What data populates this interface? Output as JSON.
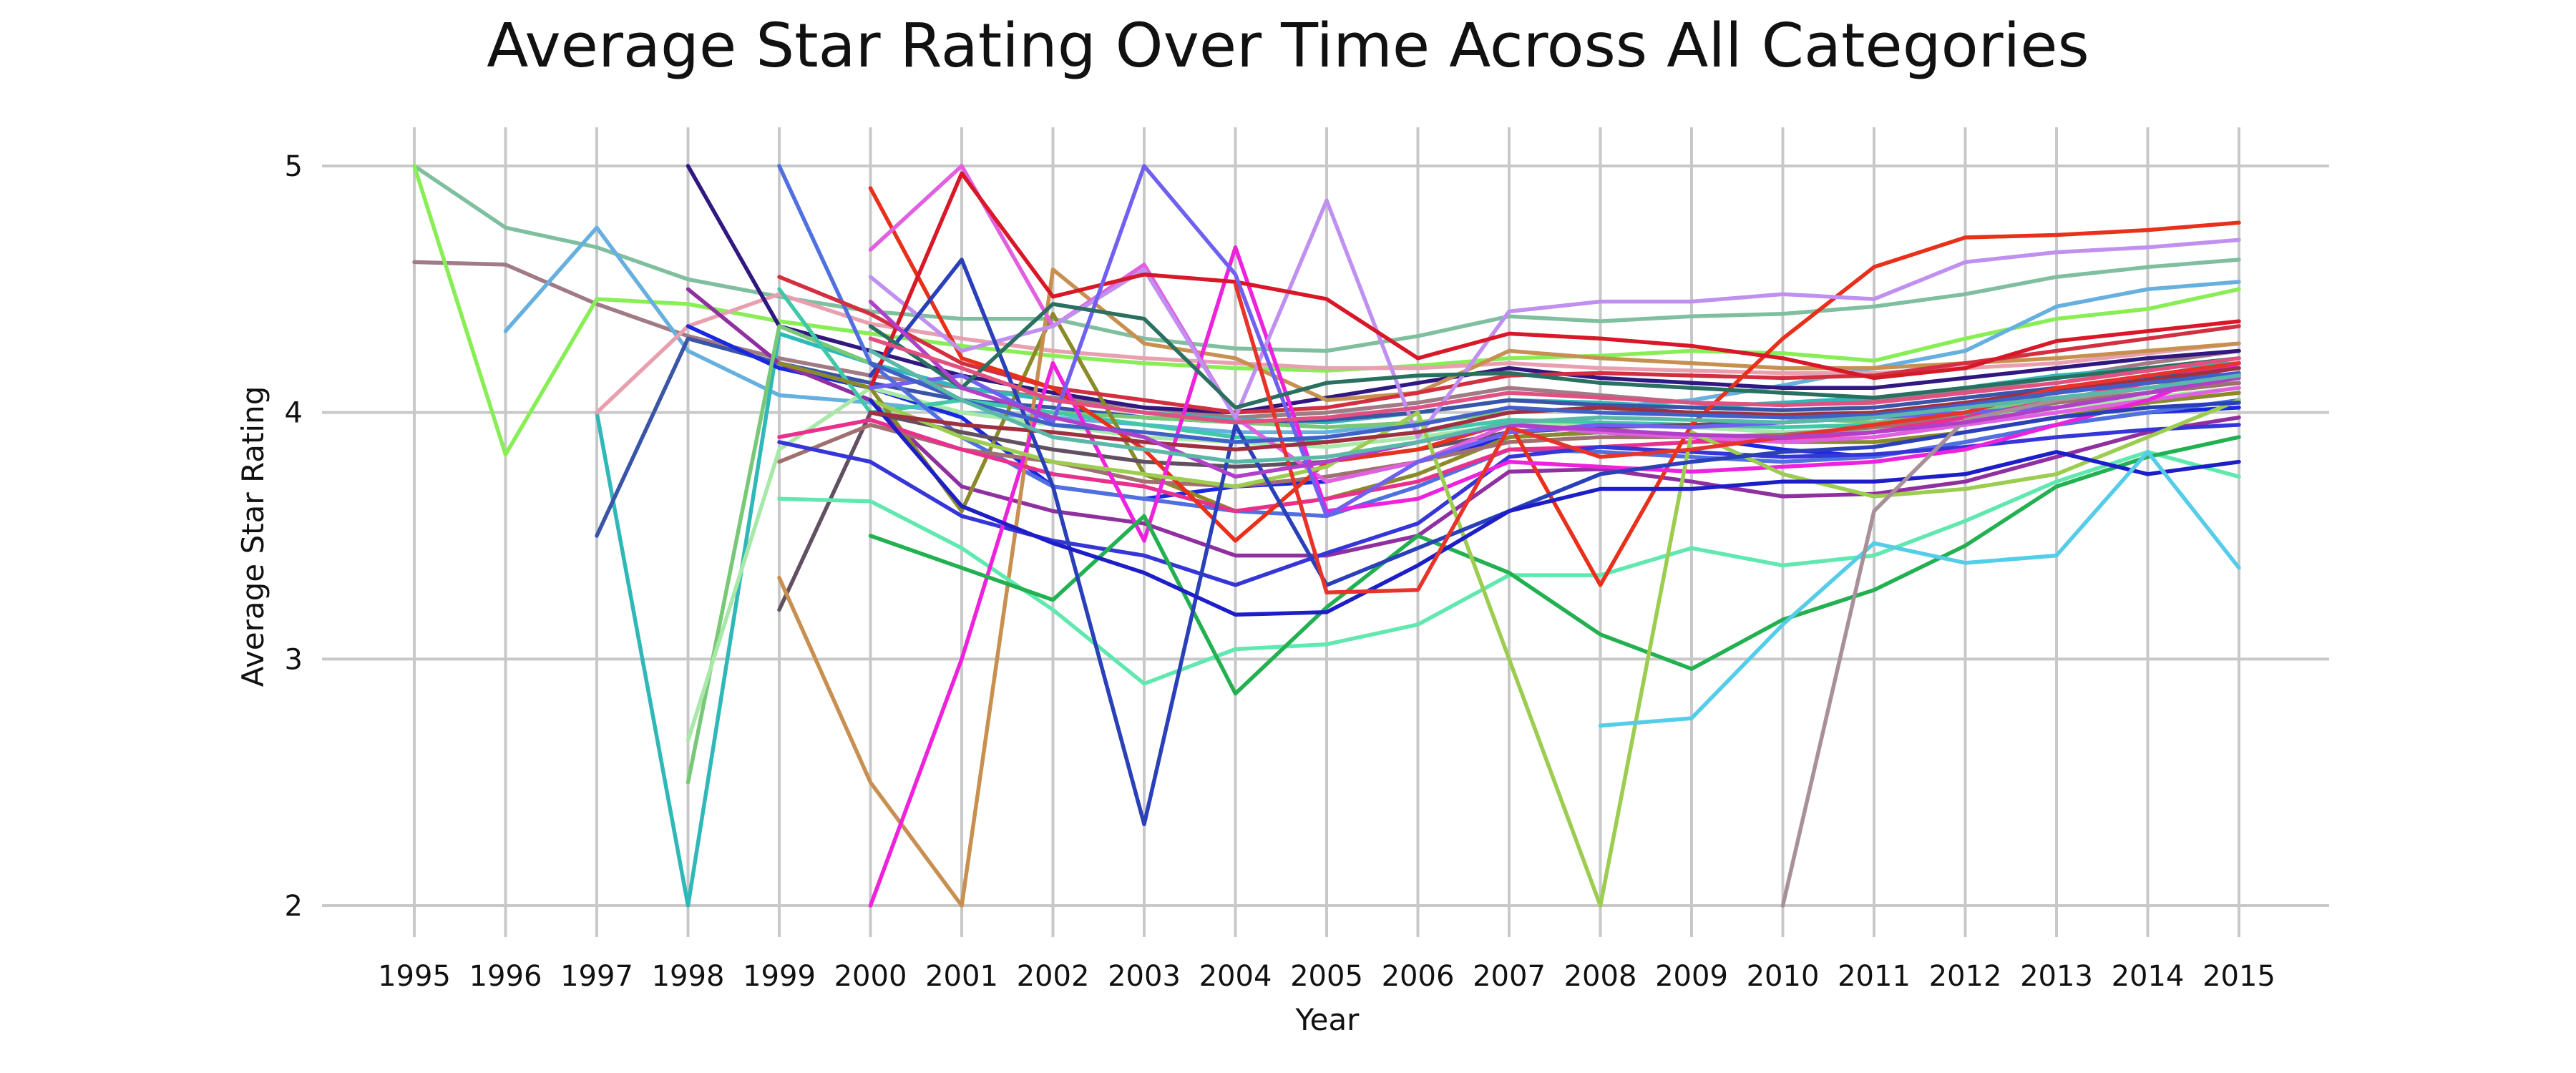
{
  "chart_data": {
    "type": "line",
    "title": "Average Star Rating Over Time Across All Categories",
    "xlabel": "Year",
    "ylabel": "Average Star Rating",
    "x": [
      1995,
      1996,
      1997,
      1998,
      1999,
      2000,
      2001,
      2002,
      2003,
      2004,
      2005,
      2006,
      2007,
      2008,
      2009,
      2010,
      2011,
      2012,
      2013,
      2014,
      2015
    ],
    "xlim": [
      1995,
      2015
    ],
    "ylim": [
      1.85,
      5.15
    ],
    "yticks": [
      2,
      3,
      4,
      5
    ],
    "grid": true,
    "legend": "none",
    "series": [
      {
        "color": "#7fbf9f",
        "values": [
          5.0,
          4.75,
          4.67,
          4.54,
          4.47,
          4.41,
          4.38,
          4.38,
          4.3,
          4.26,
          4.25,
          4.31,
          4.39,
          4.37,
          4.39,
          4.4,
          4.43,
          4.48,
          4.55,
          4.59,
          4.62
        ]
      },
      {
        "color": "#a07a85",
        "values": [
          4.61,
          4.6,
          4.44,
          4.31,
          4.22,
          4.15,
          4.1,
          4.06,
          4.02,
          3.98,
          4.0,
          4.04,
          4.1,
          4.07,
          4.04,
          4.03,
          4.05,
          4.09,
          4.14,
          4.2,
          4.25
        ]
      },
      {
        "color": "#88ee55",
        "values": [
          5.0,
          3.83,
          4.46,
          4.44,
          4.37,
          4.32,
          4.27,
          4.23,
          4.2,
          4.18,
          4.17,
          4.19,
          4.22,
          4.23,
          4.25,
          4.24,
          4.21,
          4.3,
          4.38,
          4.42,
          4.5
        ]
      },
      {
        "color": "#66b0e0",
        "values": [
          null,
          4.33,
          4.75,
          4.25,
          4.07,
          4.04,
          4.0,
          3.98,
          3.95,
          3.92,
          3.92,
          3.96,
          4.0,
          4.02,
          4.05,
          4.11,
          4.18,
          4.25,
          4.43,
          4.5,
          4.53
        ]
      },
      {
        "color": "#30b8b8",
        "values": [
          null,
          null,
          4.0,
          2.0,
          4.32,
          4.2,
          4.1,
          4.05,
          4.0,
          3.97,
          3.96,
          4.0,
          4.05,
          4.04,
          4.02,
          4.04,
          4.06,
          4.1,
          4.15,
          4.18,
          4.2
        ]
      },
      {
        "color": "#e8a0b0",
        "values": [
          null,
          null,
          4.0,
          4.35,
          4.48,
          4.36,
          4.3,
          4.25,
          4.22,
          4.2,
          4.18,
          4.18,
          4.2,
          4.18,
          4.17,
          4.16,
          4.16,
          4.18,
          4.2,
          4.24,
          4.28
        ]
      },
      {
        "color": "#3a55a8",
        "values": [
          null,
          null,
          3.5,
          4.3,
          4.2,
          4.12,
          4.05,
          4.02,
          3.98,
          3.96,
          3.97,
          4.0,
          4.05,
          4.03,
          4.02,
          4.01,
          4.02,
          4.06,
          4.1,
          4.14,
          4.18
        ]
      },
      {
        "color": "#301880",
        "values": [
          null,
          null,
          null,
          5.0,
          4.35,
          4.25,
          4.15,
          4.08,
          4.02,
          4.0,
          4.06,
          4.12,
          4.18,
          4.14,
          4.12,
          4.1,
          4.1,
          4.14,
          4.18,
          4.22,
          4.25
        ]
      },
      {
        "color": "#1a28e0",
        "values": [
          null,
          null,
          null,
          4.35,
          4.18,
          4.1,
          3.98,
          3.7,
          3.65,
          3.7,
          3.72,
          3.8,
          3.9,
          3.92,
          3.9,
          3.85,
          3.82,
          3.88,
          3.95,
          4.0,
          4.02
        ]
      },
      {
        "color": "#9030a0",
        "values": [
          null,
          null,
          null,
          4.5,
          4.2,
          4.05,
          3.7,
          3.6,
          3.55,
          3.42,
          3.42,
          3.5,
          3.76,
          3.77,
          3.72,
          3.66,
          3.67,
          3.72,
          3.82,
          3.92,
          3.98
        ]
      },
      {
        "color": "#78c878",
        "values": [
          null,
          null,
          null,
          2.5,
          4.35,
          4.2,
          4.05,
          4.0,
          3.98,
          3.96,
          3.94,
          3.96,
          4.0,
          4.02,
          4.0,
          3.98,
          3.96,
          4.0,
          4.05,
          4.1,
          4.12
        ]
      },
      {
        "color": "#a8e8a8",
        "values": [
          null,
          null,
          null,
          2.67,
          3.85,
          4.1,
          4.0,
          3.95,
          3.9,
          3.88,
          3.86,
          3.9,
          3.95,
          3.96,
          3.94,
          3.92,
          3.93,
          3.97,
          4.02,
          4.06,
          4.1
        ]
      },
      {
        "color": "#40c8a8",
        "values": [
          null,
          null,
          null,
          null,
          4.5,
          4.0,
          4.05,
          4.0,
          3.95,
          3.9,
          3.88,
          3.92,
          3.97,
          3.96,
          3.95,
          3.94,
          3.95,
          3.99,
          4.04,
          4.08,
          4.12
        ]
      },
      {
        "color": "#8a8a2a",
        "values": [
          null,
          null,
          null,
          null,
          4.2,
          4.1,
          3.6,
          4.4,
          3.75,
          3.6,
          3.65,
          3.75,
          3.9,
          3.92,
          3.9,
          3.88,
          3.88,
          3.92,
          3.98,
          4.04,
          4.08
        ]
      },
      {
        "color": "#5070e0",
        "values": [
          null,
          null,
          null,
          null,
          5.0,
          4.2,
          3.9,
          3.7,
          3.65,
          3.6,
          3.58,
          3.7,
          3.85,
          3.84,
          3.82,
          3.8,
          3.82,
          3.88,
          3.95,
          4.0,
          4.05
        ]
      },
      {
        "color": "#605060",
        "values": [
          null,
          null,
          null,
          null,
          3.2,
          4.0,
          3.92,
          3.85,
          3.8,
          3.78,
          3.8,
          3.85,
          3.92,
          3.94,
          3.95,
          3.96,
          3.98,
          4.02,
          4.08,
          4.12,
          4.15
        ]
      },
      {
        "color": "#a07070",
        "values": [
          null,
          null,
          null,
          null,
          3.8,
          3.95,
          3.85,
          3.8,
          3.72,
          3.7,
          3.74,
          3.8,
          3.88,
          3.9,
          3.9,
          3.91,
          3.94,
          3.98,
          4.04,
          4.08,
          4.12
        ]
      },
      {
        "color": "#c89050",
        "values": [
          null,
          null,
          null,
          null,
          3.33,
          2.5,
          2.0,
          4.58,
          4.28,
          4.22,
          4.05,
          4.08,
          4.25,
          4.22,
          4.2,
          4.18,
          4.18,
          4.2,
          4.22,
          4.25,
          4.28
        ]
      },
      {
        "color": "#d23040",
        "values": [
          null,
          null,
          null,
          null,
          4.55,
          4.4,
          4.2,
          4.1,
          4.05,
          4.0,
          4.02,
          4.08,
          4.15,
          4.16,
          4.15,
          4.14,
          4.15,
          4.2,
          4.25,
          4.3,
          4.35
        ]
      },
      {
        "color": "#e8308c",
        "values": [
          null,
          null,
          null,
          null,
          3.9,
          3.97,
          3.85,
          3.75,
          3.7,
          3.6,
          3.65,
          3.72,
          3.85,
          3.86,
          3.88,
          3.89,
          3.92,
          3.98,
          4.05,
          4.12,
          4.2
        ]
      },
      {
        "color": "#60e8b0",
        "values": [
          null,
          null,
          null,
          null,
          3.65,
          3.64,
          3.45,
          3.2,
          2.9,
          3.04,
          3.06,
          3.14,
          3.34,
          3.34,
          3.45,
          3.38,
          3.42,
          3.56,
          3.72,
          3.84,
          3.74
        ]
      },
      {
        "color": "#3636d8",
        "values": [
          null,
          null,
          null,
          null,
          3.88,
          3.8,
          3.58,
          3.48,
          3.42,
          3.3,
          3.43,
          3.55,
          3.82,
          3.86,
          3.84,
          3.82,
          3.83,
          3.86,
          3.9,
          3.93,
          3.95
        ]
      },
      {
        "color": "#e8301a",
        "values": [
          null,
          null,
          null,
          null,
          null,
          4.91,
          4.22,
          4.1,
          3.85,
          3.48,
          3.8,
          3.85,
          3.96,
          3.3,
          3.95,
          4.3,
          4.59,
          4.71,
          4.72,
          4.74,
          4.77
        ]
      },
      {
        "color": "#e060e0",
        "values": [
          null,
          null,
          null,
          null,
          null,
          4.66,
          5.0,
          4.35,
          4.6,
          3.98,
          3.72,
          3.8,
          3.95,
          3.92,
          3.9,
          3.88,
          3.9,
          3.95,
          4.0,
          4.05,
          4.1
        ]
      },
      {
        "color": "#ee22dd",
        "values": [
          null,
          null,
          null,
          null,
          null,
          2.0,
          3.0,
          4.2,
          3.48,
          4.67,
          3.6,
          3.65,
          3.8,
          3.78,
          3.76,
          3.78,
          3.8,
          3.85,
          3.95,
          4.05,
          4.2
        ]
      },
      {
        "color": "#c090f0",
        "values": [
          null,
          null,
          null,
          null,
          null,
          4.55,
          4.25,
          4.35,
          4.58,
          3.98,
          4.86,
          3.9,
          4.41,
          4.45,
          4.45,
          4.48,
          4.46,
          4.61,
          4.65,
          4.67,
          4.7
        ]
      },
      {
        "color": "#22b050",
        "values": [
          null,
          null,
          null,
          null,
          null,
          3.5,
          3.37,
          3.24,
          3.58,
          2.86,
          3.21,
          3.5,
          3.35,
          3.1,
          2.96,
          3.16,
          3.28,
          3.46,
          3.7,
          3.82,
          3.9
        ]
      },
      {
        "color": "#9ccc50",
        "values": [
          null,
          null,
          null,
          null,
          null,
          4.05,
          3.9,
          3.8,
          3.75,
          3.7,
          3.78,
          4.0,
          3.0,
          2.0,
          3.92,
          3.75,
          3.66,
          3.69,
          3.75,
          3.9,
          4.05
        ]
      },
      {
        "color": "#2a40b8",
        "values": [
          null,
          null,
          null,
          null,
          null,
          4.15,
          4.62,
          3.7,
          2.33,
          3.95,
          3.3,
          3.45,
          3.6,
          3.75,
          3.8,
          3.84,
          3.86,
          3.92,
          3.98,
          4.02,
          4.04
        ]
      },
      {
        "color": "#d81828",
        "values": [
          null,
          null,
          null,
          null,
          null,
          4.1,
          4.97,
          4.47,
          4.56,
          4.53,
          4.46,
          4.22,
          4.32,
          4.3,
          4.27,
          4.22,
          4.14,
          4.18,
          4.29,
          4.33,
          4.37
        ]
      },
      {
        "color": "#7060f0",
        "values": [
          null,
          null,
          null,
          null,
          null,
          4.1,
          4.15,
          3.96,
          5.0,
          4.56,
          3.58,
          3.8,
          3.92,
          3.95,
          3.94,
          3.96,
          3.98,
          4.0,
          4.02,
          4.08,
          4.15
        ]
      },
      {
        "color": "#1e1ec8",
        "values": [
          null,
          null,
          null,
          null,
          null,
          4.05,
          3.62,
          3.47,
          3.35,
          3.18,
          3.19,
          3.38,
          3.6,
          3.69,
          3.69,
          3.72,
          3.72,
          3.75,
          3.84,
          3.75,
          3.8
        ]
      },
      {
        "color": "#55cce8",
        "values": [
          null,
          null,
          null,
          null,
          null,
          null,
          null,
          null,
          null,
          null,
          null,
          null,
          null,
          2.73,
          2.76,
          3.14,
          3.47,
          3.39,
          3.42,
          3.84,
          3.37
        ]
      },
      {
        "color": "#a89098",
        "values": [
          null,
          null,
          null,
          null,
          null,
          null,
          null,
          null,
          null,
          null,
          null,
          null,
          null,
          null,
          null,
          2.0,
          3.6,
          3.97,
          4.05,
          4.1,
          4.15
        ]
      },
      {
        "color": "#2a7060",
        "values": [
          null,
          null,
          null,
          null,
          null,
          4.35,
          4.1,
          4.44,
          4.38,
          4.02,
          4.12,
          4.15,
          4.16,
          4.12,
          4.1,
          4.08,
          4.06,
          4.1,
          4.14,
          4.18,
          4.22
        ]
      },
      {
        "color": "#a03040",
        "values": [
          null,
          null,
          null,
          null,
          null,
          4.0,
          3.95,
          3.92,
          3.88,
          3.85,
          3.88,
          3.92,
          4.0,
          4.02,
          4.0,
          3.99,
          4.0,
          4.04,
          4.09,
          4.13,
          4.18
        ]
      },
      {
        "color": "#e8332a",
        "values": [
          null,
          null,
          null,
          null,
          null,
          null,
          null,
          null,
          null,
          4.52,
          3.27,
          3.28,
          3.94,
          3.82,
          3.85,
          3.9,
          3.95,
          4.0,
          4.1,
          4.15,
          4.2
        ]
      },
      {
        "color": "#4060c8",
        "values": [
          null,
          null,
          null,
          null,
          null,
          4.2,
          4.05,
          3.95,
          3.92,
          3.88,
          3.9,
          3.95,
          4.02,
          4.0,
          3.99,
          3.98,
          3.99,
          4.03,
          4.08,
          4.12,
          4.16
        ]
      },
      {
        "color": "#b040c8",
        "values": [
          null,
          null,
          null,
          null,
          null,
          4.45,
          4.1,
          3.98,
          3.9,
          3.74,
          3.8,
          3.88,
          3.95,
          3.93,
          3.91,
          3.9,
          3.92,
          3.96,
          4.02,
          4.08,
          4.14
        ]
      },
      {
        "color": "#5ab8a8",
        "values": [
          null,
          null,
          null,
          null,
          null,
          4.25,
          4.05,
          3.9,
          3.85,
          3.8,
          3.82,
          3.88,
          3.96,
          3.98,
          3.97,
          3.96,
          3.98,
          4.02,
          4.06,
          4.1,
          4.15
        ]
      },
      {
        "color": "#e05080",
        "values": [
          null,
          null,
          null,
          null,
          null,
          4.3,
          4.18,
          4.05,
          4.0,
          3.96,
          3.98,
          4.02,
          4.08,
          4.06,
          4.04,
          4.03,
          4.04,
          4.08,
          4.12,
          4.17,
          4.22
        ]
      }
    ]
  }
}
